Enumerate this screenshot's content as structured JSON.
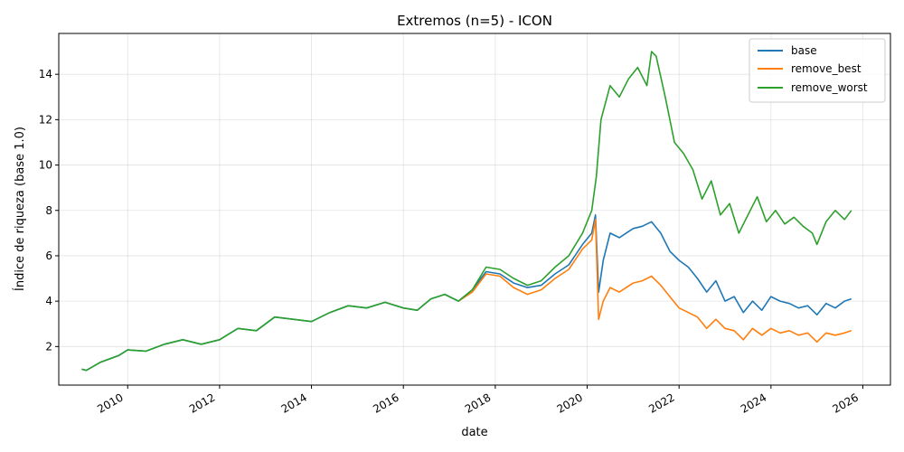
{
  "chart_data": {
    "type": "line",
    "title": "Extremos (n=5) - ICON",
    "xlabel": "date",
    "ylabel": "Índice de riqueza (base 1.0)",
    "xlim": [
      2008.5,
      2026.6
    ],
    "ylim": [
      0.3,
      15.8
    ],
    "grid": true,
    "legend_position": "top-right",
    "x_ticks": [
      2010,
      2012,
      2014,
      2016,
      2018,
      2020,
      2022,
      2024,
      2026
    ],
    "y_ticks": [
      2,
      4,
      6,
      8,
      10,
      12,
      14
    ],
    "x_tick_labels": [
      "2010",
      "2012",
      "2014",
      "2016",
      "2018",
      "2020",
      "2022",
      "2024",
      "2026"
    ],
    "y_tick_labels": [
      "2",
      "4",
      "6",
      "8",
      "10",
      "12",
      "14"
    ],
    "colors": {
      "base": "#1f77b4",
      "remove_best": "#ff7f0e",
      "remove_worst": "#2ca02c"
    },
    "series": [
      {
        "name": "base",
        "x": [
          2009.0,
          2009.1,
          2009.4,
          2009.8,
          2010.0,
          2010.4,
          2010.8,
          2011.2,
          2011.6,
          2012.0,
          2012.4,
          2012.8,
          2013.2,
          2013.6,
          2014.0,
          2014.4,
          2014.8,
          2015.2,
          2015.6,
          2016.0,
          2016.3,
          2016.6,
          2016.9,
          2017.2,
          2017.5,
          2017.8,
          2018.1,
          2018.4,
          2018.7,
          2019.0,
          2019.3,
          2019.6,
          2019.9,
          2020.1,
          2020.18,
          2020.25,
          2020.35,
          2020.5,
          2020.7,
          2021.0,
          2021.2,
          2021.4,
          2021.6,
          2021.8,
          2022.0,
          2022.2,
          2022.4,
          2022.6,
          2022.8,
          2023.0,
          2023.2,
          2023.4,
          2023.6,
          2023.8,
          2024.0,
          2024.2,
          2024.4,
          2024.6,
          2024.8,
          2025.0,
          2025.2,
          2025.4,
          2025.6,
          2025.75
        ],
        "y": [
          1.0,
          0.95,
          1.3,
          1.6,
          1.85,
          1.8,
          2.1,
          2.3,
          2.1,
          2.3,
          2.8,
          2.7,
          3.3,
          3.2,
          3.1,
          3.5,
          3.8,
          3.7,
          3.95,
          3.7,
          3.6,
          4.1,
          4.3,
          4.0,
          4.5,
          5.3,
          5.2,
          4.8,
          4.6,
          4.7,
          5.2,
          5.6,
          6.5,
          7.0,
          7.8,
          4.4,
          5.8,
          7.0,
          6.8,
          7.2,
          7.3,
          7.5,
          7.0,
          6.2,
          5.8,
          5.5,
          5.0,
          4.4,
          4.9,
          4.0,
          4.2,
          3.5,
          4.0,
          3.6,
          4.2,
          4.0,
          3.9,
          3.7,
          3.8,
          3.4,
          3.9,
          3.7,
          4.0,
          4.1
        ]
      },
      {
        "name": "remove_best",
        "x": [
          2017.2,
          2017.5,
          2017.8,
          2018.1,
          2018.4,
          2018.7,
          2019.0,
          2019.3,
          2019.6,
          2019.9,
          2020.1,
          2020.18,
          2020.25,
          2020.35,
          2020.5,
          2020.7,
          2021.0,
          2021.2,
          2021.4,
          2021.6,
          2021.8,
          2022.0,
          2022.2,
          2022.4,
          2022.6,
          2022.8,
          2023.0,
          2023.2,
          2023.4,
          2023.6,
          2023.8,
          2024.0,
          2024.2,
          2024.4,
          2024.6,
          2024.8,
          2025.0,
          2025.2,
          2025.4,
          2025.6,
          2025.75
        ],
        "y": [
          4.0,
          4.4,
          5.2,
          5.1,
          4.6,
          4.3,
          4.5,
          5.0,
          5.4,
          6.3,
          6.7,
          7.6,
          3.2,
          4.0,
          4.6,
          4.4,
          4.8,
          4.9,
          5.1,
          4.7,
          4.2,
          3.7,
          3.5,
          3.3,
          2.8,
          3.2,
          2.8,
          2.7,
          2.3,
          2.8,
          2.5,
          2.8,
          2.6,
          2.7,
          2.5,
          2.6,
          2.2,
          2.6,
          2.5,
          2.6,
          2.7
        ]
      },
      {
        "name": "remove_worst",
        "x": [
          2009.0,
          2009.1,
          2009.4,
          2009.8,
          2010.0,
          2010.4,
          2010.8,
          2011.2,
          2011.6,
          2012.0,
          2012.4,
          2012.8,
          2013.2,
          2013.6,
          2014.0,
          2014.4,
          2014.8,
          2015.2,
          2015.6,
          2016.0,
          2016.3,
          2016.6,
          2016.9,
          2017.2,
          2017.5,
          2017.8,
          2018.1,
          2018.4,
          2018.7,
          2019.0,
          2019.3,
          2019.6,
          2019.9,
          2020.1,
          2020.2,
          2020.3,
          2020.5,
          2020.7,
          2020.9,
          2021.1,
          2021.3,
          2021.4,
          2021.5,
          2021.7,
          2021.9,
          2022.1,
          2022.3,
          2022.5,
          2022.7,
          2022.9,
          2023.1,
          2023.3,
          2023.5,
          2023.7,
          2023.9,
          2024.1,
          2024.3,
          2024.5,
          2024.7,
          2024.9,
          2025.0,
          2025.2,
          2025.4,
          2025.6,
          2025.75
        ],
        "y": [
          1.0,
          0.95,
          1.3,
          1.6,
          1.85,
          1.8,
          2.1,
          2.3,
          2.1,
          2.3,
          2.8,
          2.7,
          3.3,
          3.2,
          3.1,
          3.5,
          3.8,
          3.7,
          3.95,
          3.7,
          3.6,
          4.1,
          4.3,
          4.0,
          4.5,
          5.5,
          5.4,
          5.0,
          4.7,
          4.9,
          5.5,
          6.0,
          7.0,
          8.0,
          9.5,
          12.0,
          13.5,
          13.0,
          13.8,
          14.3,
          13.5,
          15.0,
          14.8,
          13.0,
          11.0,
          10.5,
          9.8,
          8.5,
          9.3,
          7.8,
          8.3,
          7.0,
          7.8,
          8.6,
          7.5,
          8.0,
          7.4,
          7.7,
          7.3,
          7.0,
          6.5,
          7.5,
          8.0,
          7.6,
          8.0
        ]
      }
    ]
  }
}
